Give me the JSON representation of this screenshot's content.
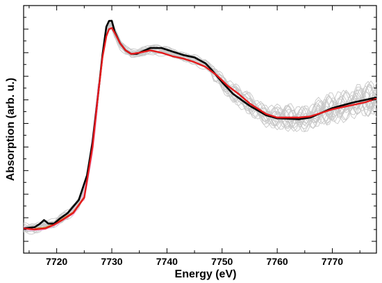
{
  "chart_data": {
    "type": "line",
    "xlabel": "Energy (eV)",
    "ylabel": "Absorption (arb. u.)",
    "xlim": [
      7714,
      7778
    ],
    "ylim": [
      -0.05,
      1.0
    ],
    "x_ticks": [
      7720,
      7730,
      7740,
      7750,
      7760,
      7770
    ],
    "x_tick_labels": [
      "7720",
      "7730",
      "7740",
      "7750",
      "7760",
      "7770"
    ],
    "grid": false,
    "legend": "none",
    "colors": {
      "black_curve": "#000000",
      "red_curve": "#e41a1c",
      "grey_curves": "#c8c8c8",
      "pink_curves": "#f2b8e6",
      "orange_curve": "#c47a1e"
    },
    "series": [
      {
        "color": "#000000",
        "x": [
          7714,
          7716,
          7717,
          7717.7,
          7718.5,
          7719.5,
          7720.5,
          7722,
          7724,
          7725.5,
          7726.5,
          7727.5,
          7728.3,
          7729,
          7729.5,
          7730,
          7730.5,
          7731.5,
          7732.5,
          7733.5,
          7734.5,
          7735.5,
          7737,
          7739,
          7741,
          7743,
          7745,
          7747,
          7748,
          7750,
          7752,
          7755,
          7758,
          7760,
          7762,
          7764,
          7766,
          7768,
          7770,
          7772,
          7774,
          7776,
          7778
        ],
        "y": [
          0.055,
          0.06,
          0.075,
          0.09,
          0.075,
          0.075,
          0.095,
          0.12,
          0.175,
          0.28,
          0.42,
          0.62,
          0.79,
          0.91,
          0.935,
          0.935,
          0.89,
          0.84,
          0.81,
          0.795,
          0.795,
          0.805,
          0.82,
          0.82,
          0.805,
          0.79,
          0.78,
          0.755,
          0.73,
          0.675,
          0.625,
          0.575,
          0.535,
          0.522,
          0.52,
          0.518,
          0.525,
          0.545,
          0.565,
          0.578,
          0.59,
          0.6,
          0.61
        ]
      },
      {
        "color": "#e41a1c",
        "x": [
          7714,
          7716,
          7718,
          7719.5,
          7721,
          7723,
          7725,
          7726.5,
          7727.5,
          7728.3,
          7729,
          7729.5,
          7730,
          7730.5,
          7731.5,
          7732.5,
          7733.5,
          7735,
          7737,
          7739,
          7741,
          7743,
          7745,
          7747,
          7749,
          7751,
          7753,
          7755,
          7758,
          7760,
          7762,
          7764,
          7766,
          7768,
          7770,
          7772,
          7774,
          7776,
          7778
        ],
        "y": [
          0.055,
          0.05,
          0.055,
          0.07,
          0.09,
          0.12,
          0.185,
          0.4,
          0.62,
          0.78,
          0.87,
          0.9,
          0.905,
          0.885,
          0.84,
          0.81,
          0.795,
          0.8,
          0.81,
          0.8,
          0.785,
          0.775,
          0.76,
          0.74,
          0.705,
          0.66,
          0.625,
          0.585,
          0.54,
          0.525,
          0.525,
          0.525,
          0.53,
          0.545,
          0.56,
          0.57,
          0.58,
          0.59,
          0.605
        ]
      }
    ]
  }
}
